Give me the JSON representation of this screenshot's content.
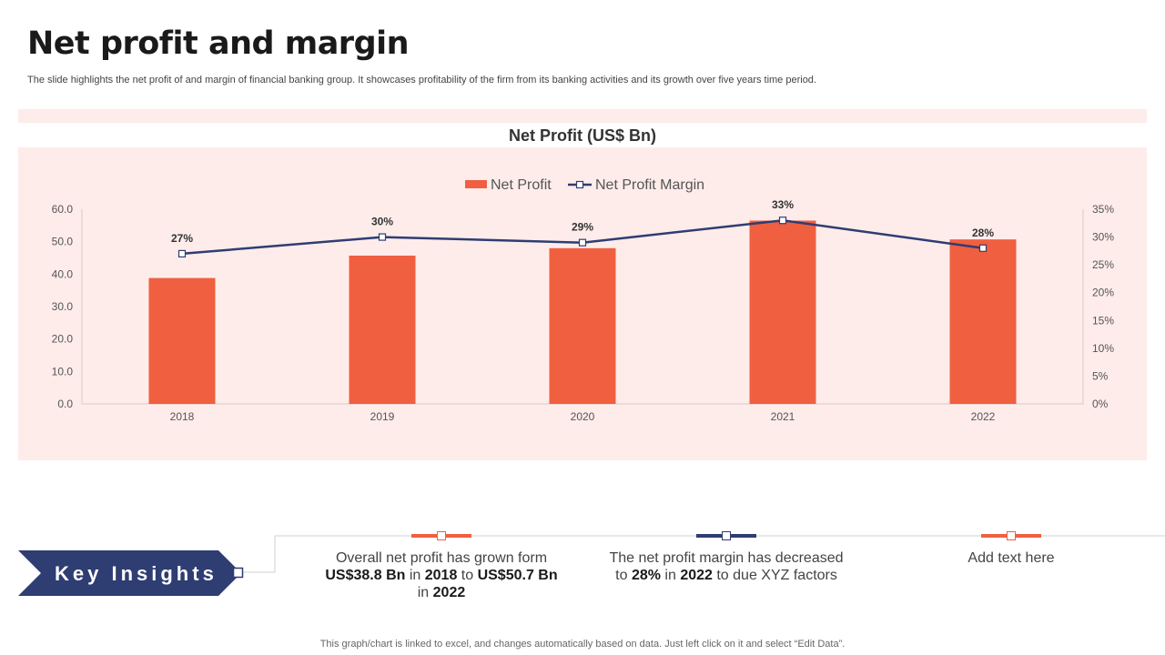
{
  "slide": {
    "title": "Net profit and margin",
    "subtitle": "The slide highlights the net profit of and margin of financial banking group. It showcases profitability of the firm from its banking activities and its growth over five years time period.",
    "footnote": "This graph/chart is linked to excel,  and changes automatically based on data. Just left click on it and select “Edit Data”."
  },
  "chart_data": {
    "type": "bar",
    "title": "Net Profit (US$ Bn)",
    "categories": [
      "2018",
      "2019",
      "2020",
      "2021",
      "2022"
    ],
    "series": [
      {
        "name": "Net Profit",
        "type": "bar",
        "axis": "left",
        "values": [
          38.8,
          45.7,
          48.0,
          56.5,
          50.7
        ],
        "color": "#f05f40"
      },
      {
        "name": "Net Profit Margin",
        "type": "line",
        "axis": "right",
        "values": [
          27,
          30,
          29,
          33,
          28
        ],
        "labels": [
          "27%",
          "30%",
          "29%",
          "33%",
          "28%"
        ],
        "color": "#2e3d72"
      }
    ],
    "y_left": {
      "min": 0,
      "max": 60,
      "ticks": [
        "0.0",
        "10.0",
        "20.0",
        "30.0",
        "40.0",
        "50.0",
        "60.0"
      ]
    },
    "y_right": {
      "min": 0,
      "max": 35,
      "ticks": [
        "0%",
        "5%",
        "10%",
        "15%",
        "20%",
        "25%",
        "30%",
        "35%"
      ]
    },
    "legend_position": "top-center",
    "grid": false
  },
  "key_insights": {
    "label": "Key Insights",
    "banner_color": "#2e3d72",
    "items": [
      {
        "accent": "#f05f40",
        "parts": [
          {
            "t": "Overall net profit has grown form ",
            "b": false
          },
          {
            "t": "US$38.8 Bn",
            "b": true
          },
          {
            "t": " in ",
            "b": false
          },
          {
            "t": "2018",
            "b": true
          },
          {
            "t": " to ",
            "b": false
          },
          {
            "t": "US$50.7 Bn",
            "b": true
          },
          {
            "t": " in ",
            "b": false
          },
          {
            "t": "2022",
            "b": true
          }
        ]
      },
      {
        "accent": "#2e3d72",
        "parts": [
          {
            "t": "The net profit margin has decreased to ",
            "b": false
          },
          {
            "t": "28%",
            "b": true
          },
          {
            "t": " in ",
            "b": false
          },
          {
            "t": "2022",
            "b": true
          },
          {
            "t": " to due XYZ factors",
            "b": false
          }
        ]
      },
      {
        "accent": "#f05f40",
        "parts": [
          {
            "t": "Add text here",
            "b": false
          }
        ]
      }
    ]
  }
}
